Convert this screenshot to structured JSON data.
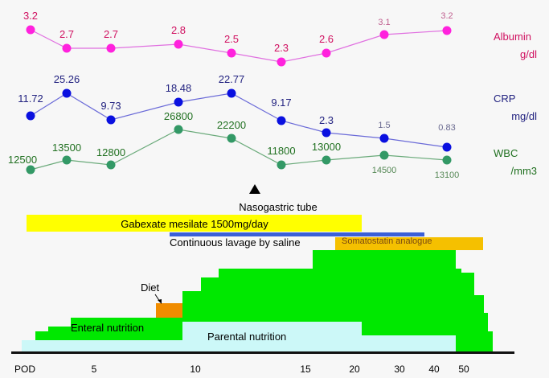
{
  "chart_data": {
    "type": "line",
    "x_axis": {
      "label": "POD",
      "tick_labels": [
        "5",
        "10",
        "15",
        "20",
        "30",
        "40",
        "50"
      ]
    },
    "series": [
      {
        "name": "Albumin",
        "unit": "g/dl",
        "values": [
          3.2,
          2.7,
          2.7,
          2.8,
          2.5,
          2.3,
          2.6,
          3.1,
          3.2
        ],
        "labels": [
          "3.2",
          "2.7",
          "2.7",
          "2.8",
          "2.5",
          "2.3",
          "2.6",
          "3.1",
          "3.2"
        ],
        "point_color": "#ff22dd",
        "line_color": "#e070e0",
        "label_color": "#d01060"
      },
      {
        "name": "CRP",
        "unit": "mg/dl",
        "values": [
          11.72,
          25.26,
          9.73,
          18.48,
          22.77,
          9.17,
          2.3,
          1.5,
          0.83
        ],
        "labels": [
          "11.72",
          "25.26",
          "9.73",
          "18.48",
          "22.77",
          "9.17",
          "2.3",
          "1.5",
          "0.83"
        ],
        "point_color": "#0a10e0",
        "line_color": "#6a6ad8",
        "label_color": "#222280"
      },
      {
        "name": "WBC",
        "unit": "/mm3",
        "values": [
          12500,
          13500,
          12800,
          26800,
          22200,
          11800,
          13000,
          14500,
          13100
        ],
        "labels": [
          "12500",
          "13500",
          "12800",
          "26800",
          "22200",
          "11800",
          "13000",
          "14500",
          "13100"
        ],
        "point_color": "#339966",
        "line_color": "#6aaa7a",
        "label_color": "#207020"
      }
    ],
    "annotations": {
      "nasogastric": "Nasogastric tube",
      "gabexate": "Gabexate mesilate 1500mg/day",
      "lavage": "Continuous lavage by saline",
      "somatostatin": "Somatostatin analogue",
      "diet": "Diet",
      "enteral": "Enteral nutrition",
      "parental": "Parental nutrition"
    },
    "colors": {
      "gabexate": "#ffff00",
      "lavage": "#3a5fd8",
      "somatostatin": "#f5c000",
      "diet": "#f08c00",
      "enteral": "#00e800",
      "parental": "#ccf8f8"
    }
  }
}
